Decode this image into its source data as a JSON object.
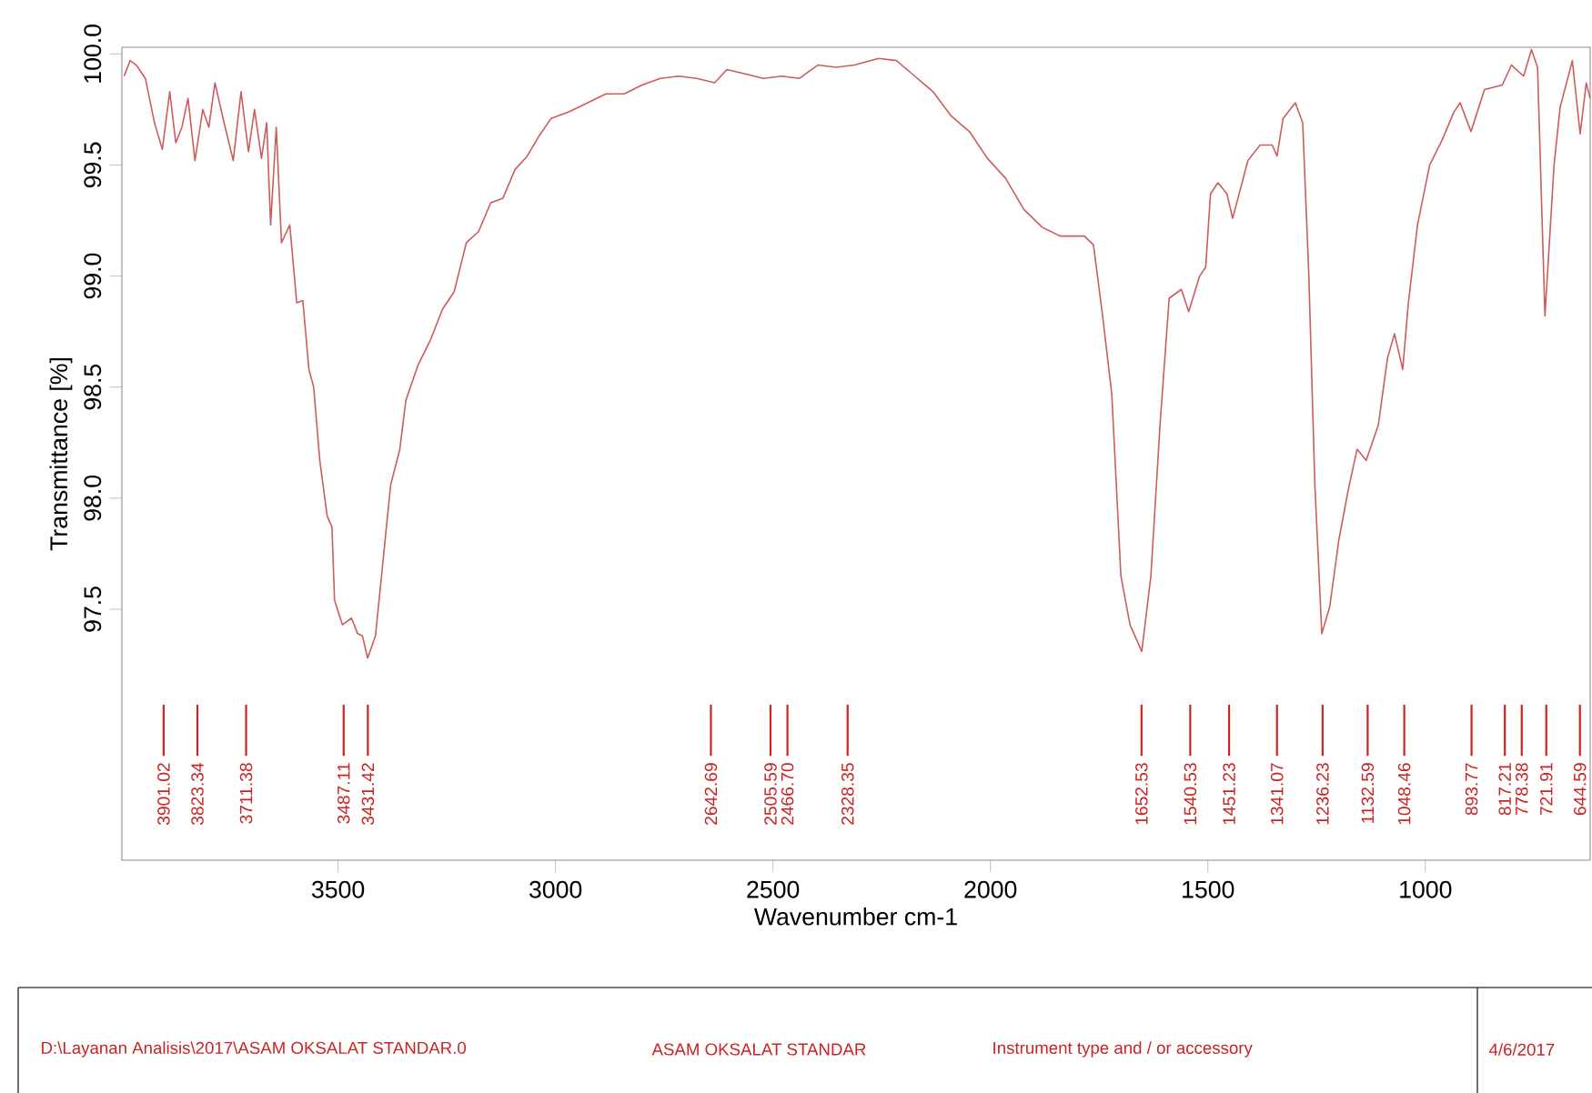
{
  "chart_data": {
    "type": "line",
    "xlabel": "Wavenumber cm-1",
    "ylabel": "Transmittance [%]",
    "xlim": [
      3997,
      621
    ],
    "ylim": [
      96.37,
      100.03
    ],
    "xticks": [
      3500,
      3000,
      2500,
      2000,
      1500,
      1000
    ],
    "yticks": [
      {
        "value": 97.5,
        "label": "97.5"
      },
      {
        "value": 98,
        "label": "98.0"
      },
      {
        "value": 98.5,
        "label": "98.5"
      },
      {
        "value": 99,
        "label": "99.0"
      },
      {
        "value": 99.5,
        "label": "99.5"
      },
      {
        "value": 100,
        "label": "100.0"
      }
    ],
    "grid": false,
    "marker": "none",
    "line_style": "solid",
    "series": [
      {
        "color": "#cd5c5c",
        "x": [
          3992,
          3978,
          3964,
          3943,
          3922,
          3904,
          3887,
          3873,
          3859,
          3845,
          3829,
          3811,
          3797,
          3783,
          3762,
          3741,
          3723,
          3706,
          3692,
          3676,
          3664,
          3655,
          3642,
          3630,
          3611,
          3595,
          3581,
          3567,
          3556,
          3542,
          3525,
          3514,
          3508,
          3490,
          3469,
          3455,
          3444,
          3432,
          3414,
          3400,
          3379,
          3358,
          3344,
          3316,
          3288,
          3260,
          3233,
          3205,
          3177,
          3149,
          3121,
          3093,
          3065,
          3038,
          3010,
          2968,
          2926,
          2884,
          2842,
          2801,
          2759,
          2717,
          2675,
          2634,
          2606,
          2564,
          2522,
          2480,
          2439,
          2397,
          2355,
          2313,
          2257,
          2216,
          2174,
          2132,
          2090,
          2048,
          2007,
          1965,
          1923,
          1881,
          1840,
          1784,
          1763,
          1742,
          1721,
          1700,
          1679,
          1652,
          1631,
          1610,
          1589,
          1561,
          1544,
          1519,
          1505,
          1494,
          1477,
          1456,
          1443,
          1408,
          1380,
          1352,
          1341,
          1327,
          1299,
          1282,
          1268,
          1254,
          1238,
          1220,
          1199,
          1178,
          1157,
          1136,
          1108,
          1087,
          1071,
          1052,
          1039,
          1018,
          990,
          962,
          934,
          920,
          895,
          864,
          823,
          802,
          774,
          756,
          742,
          725,
          704,
          690,
          662,
          644,
          630,
          621
        ],
        "values": [
          99.9,
          99.97,
          99.95,
          99.89,
          99.69,
          99.57,
          99.83,
          99.6,
          99.67,
          99.8,
          99.52,
          99.75,
          99.67,
          99.87,
          99.69,
          99.52,
          99.83,
          99.56,
          99.75,
          99.53,
          99.69,
          99.23,
          99.67,
          99.15,
          99.23,
          98.88,
          98.89,
          98.58,
          98.5,
          98.17,
          97.92,
          97.87,
          97.54,
          97.43,
          97.46,
          97.39,
          97.38,
          97.28,
          97.38,
          97.65,
          98.06,
          98.22,
          98.44,
          98.6,
          98.71,
          98.85,
          98.93,
          99.15,
          99.2,
          99.33,
          99.35,
          99.48,
          99.54,
          99.63,
          99.71,
          99.74,
          99.78,
          99.82,
          99.82,
          99.86,
          99.89,
          99.9,
          99.89,
          99.87,
          99.93,
          99.91,
          99.89,
          99.9,
          99.89,
          99.95,
          99.94,
          99.95,
          99.98,
          99.97,
          99.9,
          99.83,
          99.72,
          99.65,
          99.53,
          99.44,
          99.3,
          99.22,
          99.18,
          99.18,
          99.14,
          98.82,
          98.47,
          97.65,
          97.43,
          97.31,
          97.65,
          98.33,
          98.9,
          98.94,
          98.84,
          99.0,
          99.04,
          99.37,
          99.42,
          99.37,
          99.26,
          99.52,
          99.59,
          99.59,
          99.54,
          99.71,
          99.78,
          99.69,
          99.01,
          98.06,
          97.39,
          97.51,
          97.81,
          98.03,
          98.22,
          98.17,
          98.33,
          98.63,
          98.74,
          98.58,
          98.88,
          99.23,
          99.5,
          99.61,
          99.74,
          99.78,
          99.65,
          99.84,
          99.86,
          99.95,
          99.9,
          100.02,
          99.94,
          98.82,
          99.5,
          99.76,
          99.97,
          99.64,
          99.87,
          99.8
        ]
      },
      {
        "type": "bar",
        "color": "#cc2222",
        "x": [
          3901.02,
          3823.34,
          3711.38,
          3487.11,
          3431.42,
          2642.69,
          2505.59,
          2466.7,
          2328.35,
          1652.53,
          1540.53,
          1451.23,
          1341.07,
          1236.23,
          1132.59,
          1048.46,
          893.77,
          817.21,
          778.38,
          721.91,
          644.59
        ],
        "base": [
          96.84,
          96.84,
          96.84,
          96.84,
          96.84,
          96.84,
          96.84,
          96.84,
          96.84,
          96.84,
          96.84,
          96.84,
          96.84,
          96.84,
          96.84,
          96.84,
          96.84,
          96.84,
          96.84,
          96.84,
          96.84
        ],
        "values": [
          0.23,
          0.23,
          0.23,
          0.23,
          0.23,
          0.23,
          0.23,
          0.23,
          0.23,
          0.23,
          0.23,
          0.23,
          0.23,
          0.23,
          0.23,
          0.23,
          0.23,
          0.23,
          0.23,
          0.23,
          0.23
        ]
      }
    ],
    "annotations": [
      {
        "text": "3901.02",
        "x": 3901.02,
        "y": 96.84
      },
      {
        "text": "3823.34",
        "x": 3823.34,
        "y": 96.84
      },
      {
        "text": "3711.38",
        "x": 3711.38,
        "y": 96.84
      },
      {
        "text": "3487.11",
        "x": 3487.11,
        "y": 96.84
      },
      {
        "text": "3431.42",
        "x": 3431.42,
        "y": 96.84
      },
      {
        "text": "2642.69",
        "x": 2642.69,
        "y": 96.84
      },
      {
        "text": "2505.59",
        "x": 2505.59,
        "y": 96.84
      },
      {
        "text": "2466.70",
        "x": 2466.7,
        "y": 96.84
      },
      {
        "text": "2328.35",
        "x": 2328.35,
        "y": 96.84
      },
      {
        "text": "1652.53",
        "x": 1652.53,
        "y": 96.84
      },
      {
        "text": "1540.53",
        "x": 1540.53,
        "y": 96.84
      },
      {
        "text": "1451.23",
        "x": 1451.23,
        "y": 96.84
      },
      {
        "text": "1341.07",
        "x": 1341.07,
        "y": 96.84
      },
      {
        "text": "1236.23",
        "x": 1236.23,
        "y": 96.84
      },
      {
        "text": "1132.59",
        "x": 1132.59,
        "y": 96.84
      },
      {
        "text": "1048.46",
        "x": 1048.46,
        "y": 96.84
      },
      {
        "text": "893.77",
        "x": 893.77,
        "y": 96.84
      },
      {
        "text": "817.21",
        "x": 817.21,
        "y": 96.84
      },
      {
        "text": "778.38",
        "x": 778.38,
        "y": 96.84
      },
      {
        "text": "721.91",
        "x": 721.91,
        "y": 96.84
      },
      {
        "text": "644.59",
        "x": 644.59,
        "y": 96.84
      },
      "D:\\Layanan Analisis\\2017\\ASAM OKSALAT STANDAR.0",
      "ASAM OKSALAT STANDAR",
      "Instrument type and / or accessory",
      "4/6/2017"
    ]
  }
}
